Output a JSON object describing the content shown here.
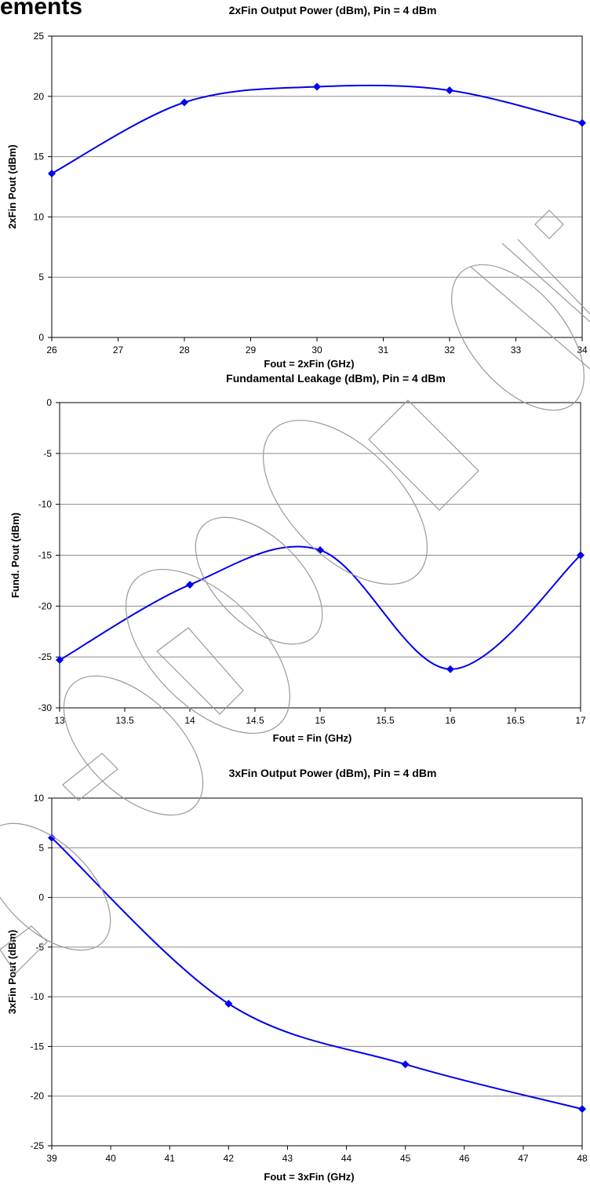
{
  "page": {
    "heading": "ements"
  },
  "colors": {
    "series": "#0000ee",
    "grid": "#8c8c8c",
    "axis": "#000000"
  },
  "chart_data": [
    {
      "type": "line",
      "title": "2xFin Output Power (dBm), Pin = 4 dBm",
      "xlabel": "Fout = 2xFin (GHz)",
      "ylabel": "2xFin Pout (dBm)",
      "xlim": [
        26,
        34
      ],
      "ylim": [
        0,
        25
      ],
      "xticks": [
        "26",
        "27",
        "28",
        "29",
        "30",
        "31",
        "32",
        "33",
        "34"
      ],
      "yticks": [
        "0",
        "5",
        "10",
        "15",
        "20",
        "25"
      ],
      "grid": true,
      "series": [
        {
          "x": [
            26,
            28,
            30,
            32,
            34
          ],
          "y": [
            13.6,
            19.5,
            20.8,
            20.5,
            17.8
          ]
        }
      ]
    },
    {
      "type": "line",
      "title": "Fundamental Leakage (dBm), Pin = 4 dBm",
      "xlabel": "Fout = Fin (GHz)",
      "ylabel": "Fund. Pout (dBm)",
      "xlim": [
        13,
        17
      ],
      "ylim": [
        -30,
        0
      ],
      "xticks": [
        "13",
        "13.5",
        "14",
        "14.5",
        "15",
        "15.5",
        "16",
        "16.5",
        "17"
      ],
      "yticks": [
        "0",
        "-5",
        "-10",
        "-15",
        "-20",
        "-25",
        "-30"
      ],
      "grid": true,
      "series": [
        {
          "x": [
            13,
            14,
            15,
            16,
            17
          ],
          "y": [
            -25.3,
            -17.9,
            -14.5,
            -26.2,
            -15.0
          ]
        }
      ]
    },
    {
      "type": "line",
      "title": "3xFin Output Power (dBm), Pin = 4 dBm",
      "xlabel": "Fout = 3xFin (GHz)",
      "ylabel": "3xFin Pout (dBm)",
      "xlim": [
        39,
        48
      ],
      "ylim": [
        -25,
        10
      ],
      "xticks": [
        "39",
        "40",
        "41",
        "42",
        "43",
        "44",
        "45",
        "46",
        "47",
        "48"
      ],
      "yticks": [
        "10",
        "5",
        "0",
        "-5",
        "-10",
        "-15",
        "-20",
        "-25"
      ],
      "grid": true,
      "series": [
        {
          "x": [
            39,
            42,
            45,
            48
          ],
          "y": [
            6.0,
            -10.7,
            -16.8,
            -21.3
          ]
        }
      ]
    }
  ]
}
